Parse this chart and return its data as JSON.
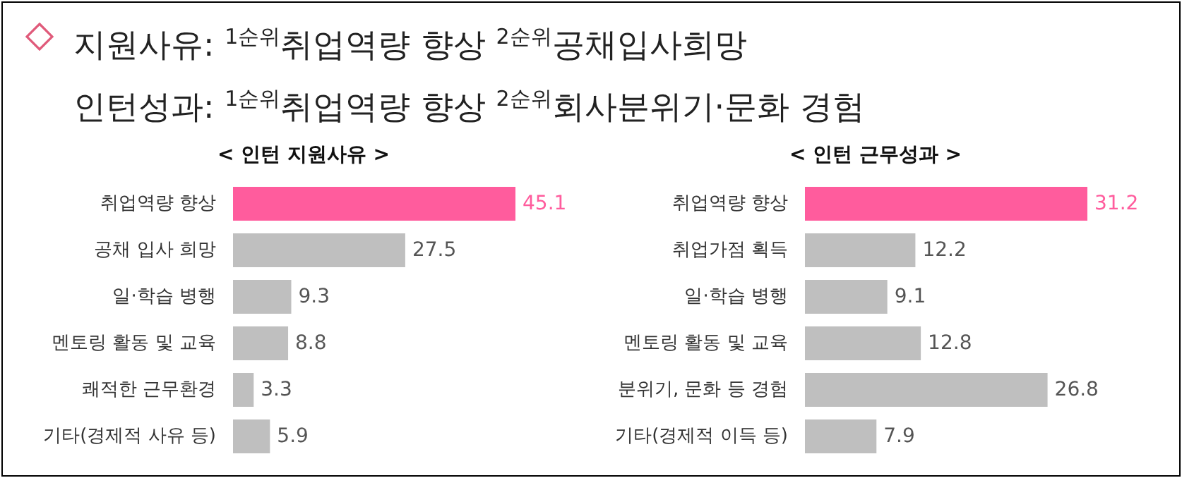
{
  "chart_data": [
    {
      "type": "other",
      "annotations": [
        "지원사유: $^{1순위}$취업역량 향상 $^{2순위}$공채입사희망",
        "인턴성과: $^{1순위}$취업역량 향상 $^{2순위}$회사분위기·문화 경험"
      ]
    },
    {
      "type": "bar",
      "orientation": "horizontal",
      "title": "< 인턴 지원사유 >",
      "categories": [
        "취업역량 향상",
        "공채 입사 희망",
        "일·학습 병행",
        "멘토링 활동 및 교육",
        "쾌적한 근무환경",
        "기타(경제적 사유 등)"
      ],
      "values": [
        45.1,
        27.5,
        9.3,
        8.8,
        3.3,
        5.9
      ],
      "colors": [
        "#ff5c9d",
        "#bfbfbf",
        "#bfbfbf",
        "#bfbfbf",
        "#bfbfbf",
        "#bfbfbf"
      ],
      "data_labels": true
    },
    {
      "type": "bar",
      "orientation": "horizontal",
      "title": "< 인턴 근무성과 >",
      "categories": [
        "취업역량 향상",
        "취업가점 획득",
        "일·학습 병행",
        "멘토링 활동 및 교육",
        "분위기, 문화 등 경험",
        "기타(경제적 이득 등)"
      ],
      "values": [
        31.2,
        12.2,
        9.1,
        12.8,
        26.8,
        7.9
      ],
      "colors": [
        "#ff5c9d",
        "#bfbfbf",
        "#bfbfbf",
        "#bfbfbf",
        "#bfbfbf",
        "#bfbfbf"
      ],
      "data_labels": true
    }
  ]
}
